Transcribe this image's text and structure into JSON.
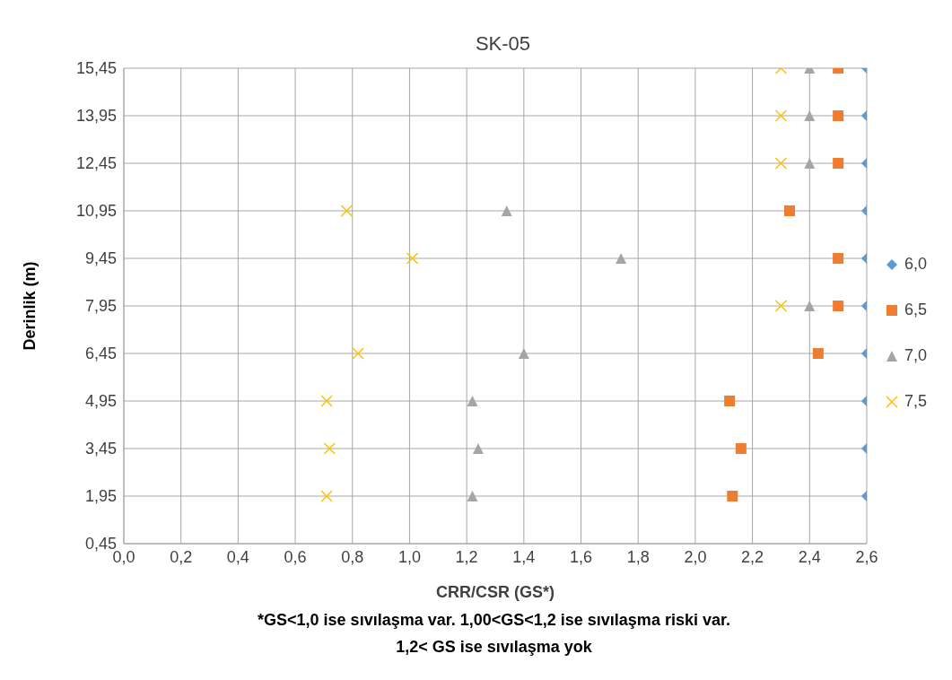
{
  "chart_data": {
    "type": "scatter",
    "title": "SK-05",
    "xlabel": "CRR/CSR (GS*)",
    "ylabel": "Derinlik (m)",
    "annotations": [
      "*GS<1,0 ise sıvılaşma var.  1,00<GS<1,2 ise sıvılaşma riski var.",
      "1,2< GS ise sıvılaşma yok"
    ],
    "xlim": [
      0,
      2.6
    ],
    "xticks": [
      {
        "value": 0,
        "label": "0,0"
      },
      {
        "value": 0.2,
        "label": "0,2"
      },
      {
        "value": 0.4,
        "label": "0,4"
      },
      {
        "value": 0.6,
        "label": "0,6"
      },
      {
        "value": 0.8,
        "label": "0,8"
      },
      {
        "value": 1,
        "label": "1,0"
      },
      {
        "value": 1.2,
        "label": "1,2"
      },
      {
        "value": 1.4,
        "label": "1,4"
      },
      {
        "value": 1.6,
        "label": "1,6"
      },
      {
        "value": 1.8,
        "label": "1,8"
      },
      {
        "value": 2,
        "label": "2,0"
      },
      {
        "value": 2.2,
        "label": "2,2"
      },
      {
        "value": 2.4,
        "label": "2,4"
      },
      {
        "value": 2.6,
        "label": "2,6"
      }
    ],
    "ylim": [
      0.45,
      15.45
    ],
    "yticks": [
      {
        "value": 0.45,
        "label": "0,45"
      },
      {
        "value": 1.95,
        "label": "1,95"
      },
      {
        "value": 3.45,
        "label": "3,45"
      },
      {
        "value": 4.95,
        "label": "4,95"
      },
      {
        "value": 6.45,
        "label": "6,45"
      },
      {
        "value": 7.95,
        "label": "7,95"
      },
      {
        "value": 9.45,
        "label": "9,45"
      },
      {
        "value": 10.95,
        "label": "10,95"
      },
      {
        "value": 12.45,
        "label": "12,45"
      },
      {
        "value": 13.95,
        "label": "13,95"
      },
      {
        "value": 15.45,
        "label": "15,45"
      }
    ],
    "grid": true,
    "legend": "right",
    "series": [
      {
        "name": "6,0",
        "color": "#5b9bd5",
        "marker": "diamond",
        "x": [
          2.6,
          2.6,
          2.6,
          2.6,
          2.6,
          2.6,
          2.6,
          2.6,
          2.6,
          2.6
        ],
        "values": [
          1.95,
          3.45,
          4.95,
          6.45,
          7.95,
          9.45,
          10.95,
          12.45,
          13.95,
          15.45
        ]
      },
      {
        "name": "6,5",
        "color": "#ed7d31",
        "marker": "square",
        "x": [
          2.13,
          2.16,
          2.12,
          2.43,
          2.5,
          2.5,
          2.33,
          2.5,
          2.5,
          2.5
        ],
        "values": [
          1.95,
          3.45,
          4.95,
          6.45,
          7.95,
          9.45,
          10.95,
          12.45,
          13.95,
          15.45
        ]
      },
      {
        "name": "7,0",
        "color": "#a5a5a5",
        "marker": "triangle",
        "x": [
          1.22,
          1.24,
          1.22,
          1.4,
          2.4,
          1.74,
          1.34,
          2.4,
          2.4,
          2.4
        ],
        "values": [
          1.95,
          3.45,
          4.95,
          6.45,
          7.95,
          9.45,
          10.95,
          12.45,
          13.95,
          15.45
        ]
      },
      {
        "name": "7,5",
        "color": "#ffc000",
        "marker": "cross",
        "x": [
          0.71,
          0.72,
          0.71,
          0.82,
          2.3,
          1.01,
          0.78,
          2.3,
          2.3,
          2.3
        ],
        "values": [
          1.95,
          3.45,
          4.95,
          6.45,
          7.95,
          9.45,
          10.95,
          12.45,
          13.95,
          15.45
        ]
      }
    ]
  }
}
